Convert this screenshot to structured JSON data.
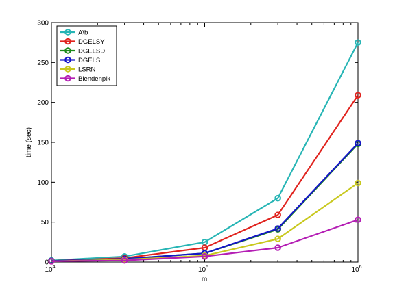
{
  "chart_data": {
    "type": "line",
    "xlabel": "m",
    "ylabel": "time (sec)",
    "xscale": "log",
    "xlim": [
      10000,
      1000000
    ],
    "ylim": [
      0,
      300
    ],
    "xticks": [
      {
        "value": 10000,
        "base": "10",
        "exp": "4"
      },
      {
        "value": 100000,
        "base": "10",
        "exp": "5"
      },
      {
        "value": 1000000,
        "base": "10",
        "exp": "6"
      }
    ],
    "yticks": [
      "0",
      "50",
      "100",
      "150",
      "200",
      "250",
      "300"
    ],
    "grid": false,
    "legend_position": "top-left",
    "x": [
      10000,
      30000,
      100000,
      300000,
      1000000
    ],
    "series": [
      {
        "name": "A\\b",
        "color": "#27b5b5",
        "values": [
          2,
          7,
          25,
          80,
          275
        ]
      },
      {
        "name": "DGELSY",
        "color": "#e0231e",
        "values": [
          1.5,
          5,
          18,
          59,
          209
        ]
      },
      {
        "name": "DGELSD",
        "color": "#1b8a1b",
        "values": [
          1.5,
          4,
          11,
          41,
          148
        ]
      },
      {
        "name": "DGELS",
        "color": "#1414c8",
        "values": [
          1.5,
          4,
          11,
          42,
          149
        ]
      },
      {
        "name": "LSRN",
        "color": "#c8c81e",
        "values": [
          1,
          3,
          8,
          29,
          99
        ]
      },
      {
        "name": "Blendenpik",
        "color": "#b41eb4",
        "values": [
          1,
          2,
          7,
          18,
          53
        ]
      }
    ]
  }
}
